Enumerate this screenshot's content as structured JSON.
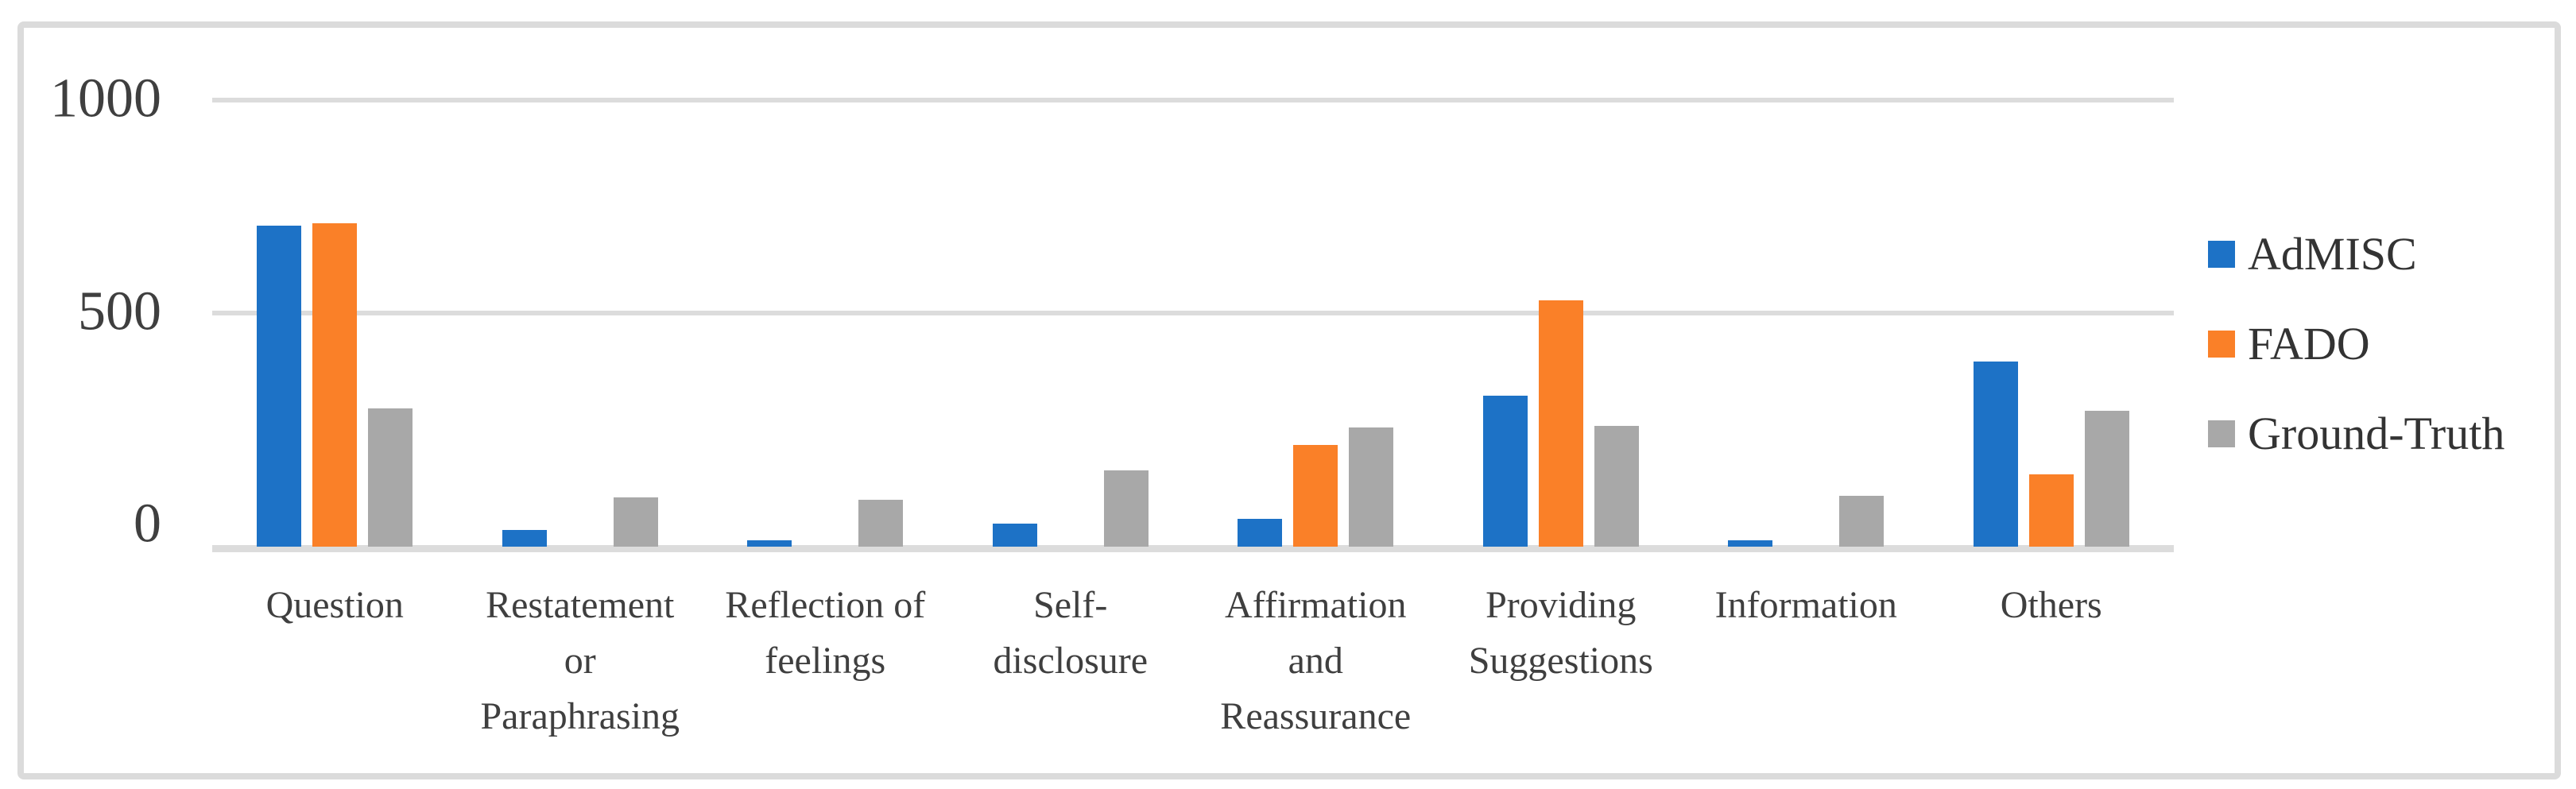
{
  "figure": {
    "background_color": "#FFFFFF",
    "frame_border_color": "#DBDBDB",
    "gridline_color": "#DCDCDC",
    "tick_label_color": "#3F3F3F",
    "legend_text_color": "#333333"
  },
  "chart_data": {
    "type": "bar",
    "title": "",
    "xlabel": "",
    "ylabel": "",
    "categories": [
      "Question",
      "Restatement or Paraphrasing",
      "Reflection of feelings",
      "Self-disclosure",
      "Affirmation and Reassurance",
      "Providing Suggestions",
      "Information",
      "Others"
    ],
    "category_label_lines": [
      [
        "Question"
      ],
      [
        "Restatement",
        "or",
        "Paraphrasing"
      ],
      [
        "Reflection of",
        "feelings"
      ],
      [
        "Self-",
        "disclosure"
      ],
      [
        "Affirmation",
        "and",
        "Reassurance"
      ],
      [
        "Providing",
        "Suggestions"
      ],
      [
        "Information"
      ],
      [
        "Others"
      ]
    ],
    "series": [
      {
        "name": "AdMISC",
        "color": "#1D72C6",
        "values": [
          755,
          40,
          15,
          55,
          65,
          355,
          15,
          435
        ]
      },
      {
        "name": "FADO",
        "color": "#FA8028",
        "values": [
          760,
          0,
          0,
          0,
          240,
          580,
          0,
          170
        ]
      },
      {
        "name": "Ground-Truth",
        "color": "#A8A8A8",
        "values": [
          325,
          115,
          110,
          180,
          280,
          285,
          120,
          320
        ]
      }
    ],
    "yticks": [
      0,
      500,
      1000
    ],
    "ylim": [
      0,
      1000
    ],
    "grid": true,
    "legend_position": "right"
  }
}
